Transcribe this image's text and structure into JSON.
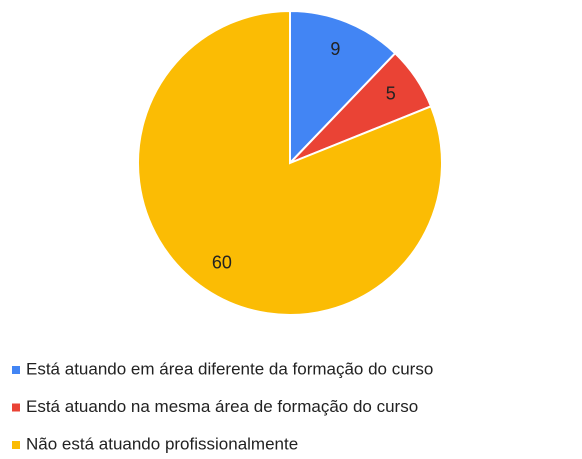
{
  "chart_data": {
    "type": "pie",
    "categories": [
      "Está atuando em área diferente da formação do curso",
      "Está atuando na mesma área de formação do curso",
      "Não está atuando profissionalmente"
    ],
    "values": [
      9,
      5,
      60
    ],
    "colors": [
      "#4285f4",
      "#ea4335",
      "#fbbc04"
    ]
  }
}
